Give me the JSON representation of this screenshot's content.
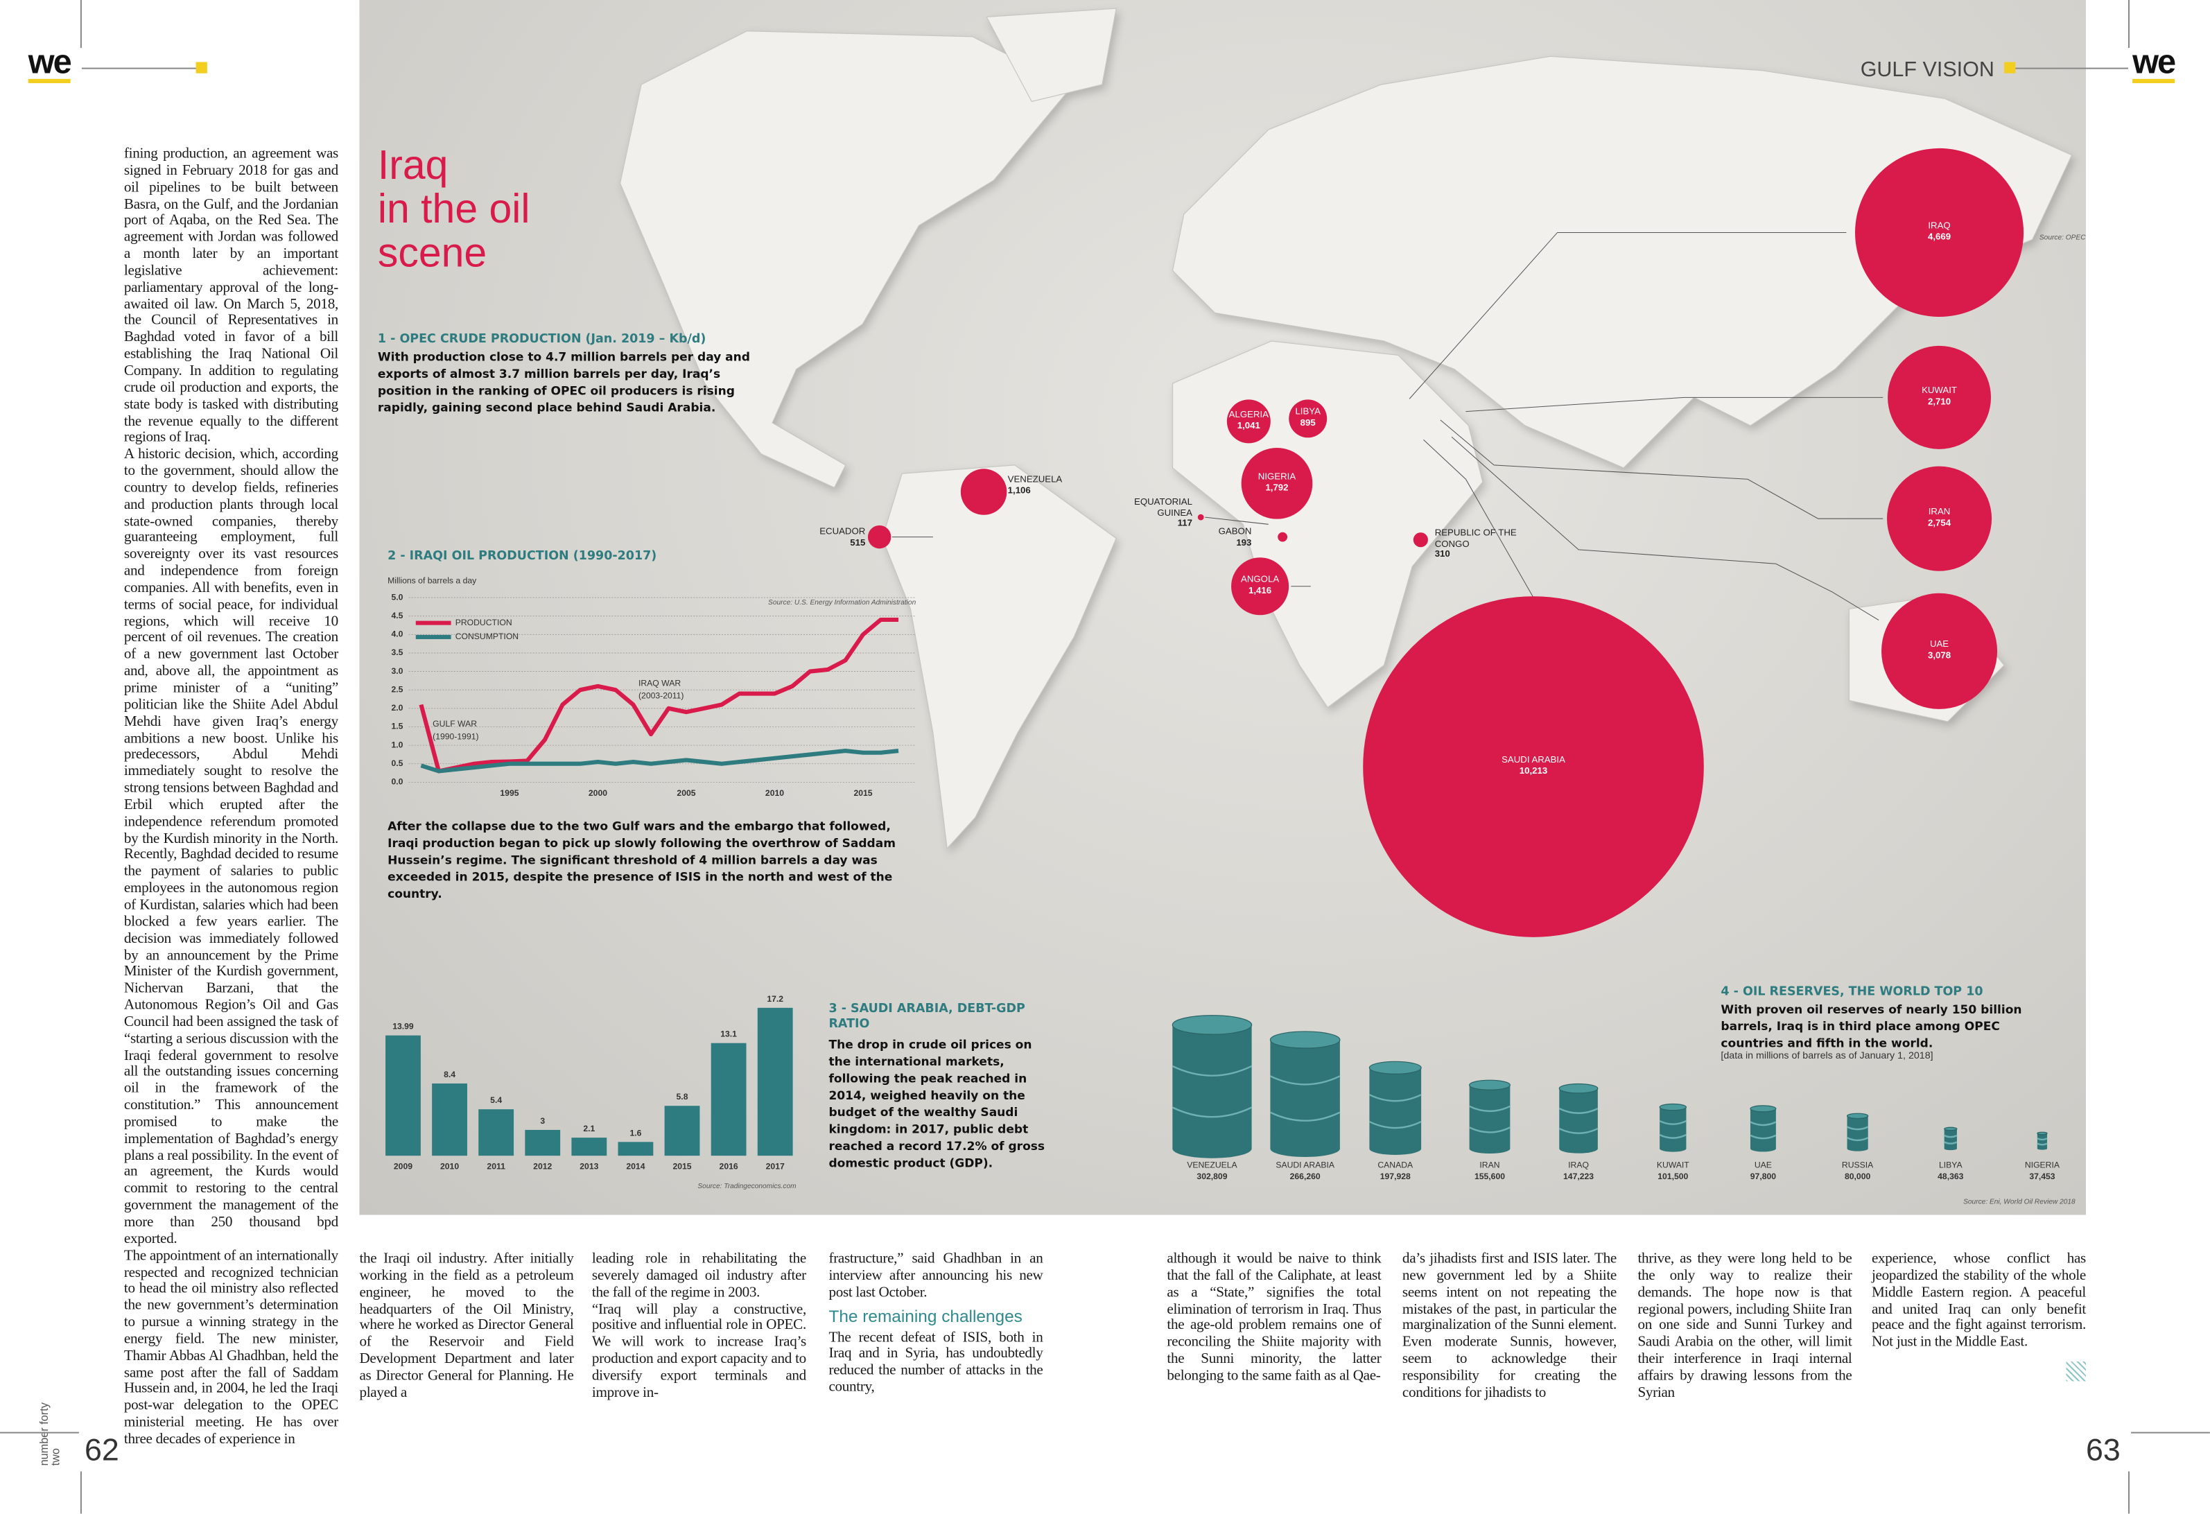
{
  "header": {
    "logo_left": "we",
    "section": "GULF VISION",
    "logo_right": "we"
  },
  "footer": {
    "issue": "number forty two",
    "page_left": "62",
    "page_right": "63"
  },
  "title_lines": [
    "Iraq",
    "in the oil",
    "scene"
  ],
  "article": {
    "columns": [
      {
        "paragraphs": [
          "fining production, an agreement was signed in February 2018 for gas and oil pipelines to be built between Basra, on the Gulf, and the Jordanian port of Aqaba, on the Red Sea. The agreement with Jordan was followed a month later by an important legislative achievement: parliamentary approval of the long-awaited oil law. On March 5, 2018, the Council of Representatives in Baghdad voted in favor of a bill establishing the Iraq National Oil Company. In addition to regulating crude oil production and exports, the state body is tasked with distributing the revenue equally to the different regions of Iraq.",
          "A historic decision, which, according to the government, should allow the country to develop fields, refineries and production plants through local state-owned companies, thereby guaranteeing employment, full sovereignty over its vast resources and independence from foreign companies. All with benefits, even in terms of social peace, for individual regions, which will receive 10 percent of oil revenues. The creation of a new government last October and, above all, the appointment as prime minister of a “uniting” politician like the Shiite Adel Abdul Mehdi have given Iraq’s energy ambitions a new boost. Unlike his predecessors, Abdul Mehdi immediately sought to resolve the strong tensions between Baghdad and Erbil which erupted after the independence referendum promoted by the Kurdish minority in the North. Recently, Baghdad decided to resume the payment of salaries to public employees in the autonomous region of Kurdistan, salaries which had been blocked a few years earlier. The decision was immediately followed by an announcement by the Prime Minister of the Kurdish government, Nichervan Barzani, that the Autonomous Region’s Oil and Gas Council had been assigned the task of “starting a serious discussion with the Iraqi federal government to resolve all the outstanding issues concerning oil in the framework of the constitution.” This announcement promised to make the implementation of Baghdad’s energy plans a real possibility. In the event of an agreement, the Kurds would commit to restoring to the central government the management of the more than 250 thousand bpd exported.",
          "The appointment of an internationally respected and recognized technician to head the oil ministry also reflected the new government’s determination to pursue a winning strategy in the energy field. The new minister, Thamir Abbas Al Ghadhban, held the same post after the fall of Saddam Hussein and, in 2004, he led the Iraqi post-war delegation to the OPEC ministerial meeting. He has over three decades of experience in"
        ]
      },
      {
        "paragraphs": [
          "the Iraqi oil industry. After initially working in the field as a petroleum engineer, he moved to the headquarters of the Oil Ministry, where he worked as Director General of the Reservoir and Field Development Department and later as Director General for Planning. He played a"
        ]
      },
      {
        "paragraphs": [
          "leading role in rehabilitating the severely damaged oil industry after the fall of the regime in 2003.",
          "“Iraq will play a constructive, positive and influential role in OPEC. We will work to increase Iraq’s production and export capacity and to diversify export terminals and improve in-"
        ]
      },
      {
        "paragraphs": [
          "frastructure,” said Ghadhban in an interview after announcing his new post last October."
        ],
        "subheading": "The remaining challenges",
        "paragraphs_after": [
          "The recent defeat of ISIS, both in Iraq and in Syria, has undoubtedly reduced the number of attacks in the country,"
        ]
      },
      {
        "paragraphs": [
          "although it would be naive to think that the fall of the Caliphate, at least as a “State,” signifies the total elimination of terrorism in Iraq. Thus the age-old problem remains one of reconciling the Shiite majority with the Sunni minority, the latter belonging to the same faith as al Qae-"
        ]
      },
      {
        "paragraphs": [
          "da’s jihadists first and ISIS later. The new government led by a Shiite seems intent on not repeating the mistakes of the past, in particular the marginalization of the Sunni element. Even moderate Sunnis, however, seem to acknowledge their responsibility for creating the conditions for jihadists to"
        ]
      },
      {
        "paragraphs": [
          "thrive, as they were long held to be the only way to realize their demands. The hope now is that regional powers, including Shiite Iran on one side and Sunni Turkey and Saudi Arabia on the other, will limit their interference in Iraqi internal affairs by drawing lessons from the Syrian"
        ]
      },
      {
        "paragraphs": [
          "experience, whose conflict has jeopardized the stability of the whole Middle Eastern region. A peaceful and united Iraq can only benefit peace and the fight against terrorism. Not just in the Middle East."
        ]
      }
    ]
  },
  "chart_data": [
    {
      "type": "bubble",
      "heading": "1 - OPEC CRUDE PRODUCTION (Jan. 2019 – Kb/d)",
      "text": "With production close to 4.7 million barrels per day and exports of almost 3.7 million barrels per day, Iraq’s position in the ranking of OPEC oil producers is rising rapidly, gaining second place behind Saudi Arabia.",
      "source": "Source: OPEC",
      "color": "#d81b4a",
      "names": [
        "IRAQ",
        "KUWAIT",
        "IRAN",
        "UAE",
        "SAUDI ARABIA",
        "VENEZUELA",
        "ECUADOR",
        "ALGERIA",
        "LIBYA",
        "NIGERIA",
        "EQUATORIAL GUINEA",
        "GABON",
        "REPUBLIC OF THE CONGO",
        "ANGOLA"
      ],
      "values": [
        4669,
        2710,
        2754,
        3078,
        10213,
        1106,
        515,
        1041,
        895,
        1792,
        117,
        193,
        310,
        1416
      ],
      "value_labels": [
        "4,669",
        "2,710",
        "2,754",
        "3,078",
        "10,213",
        "1,106",
        "515",
        "1,041",
        "895",
        "1,792",
        "117",
        "193",
        "310",
        "1,416"
      ]
    },
    {
      "type": "line",
      "heading": "2 - IRAQI OIL PRODUCTION (1990-2017)",
      "ylabel": "Millions of barrels a day",
      "source": "Source: U.S. Energy Information Administration",
      "caption": "After the collapse due to the two Gulf wars and the embargo that followed, Iraqi production began to pick up slowly following the overthrow of Saddam Hussein’s regime. The significant threshold of 4 million barrels a day was exceeded in 2015, despite the presence of ISIS in the north and west of the country.",
      "annotations": [
        [
          "GULF WAR",
          "(1990-1991)"
        ],
        [
          "IRAQ WAR",
          "(2003-2011)"
        ]
      ],
      "x": [
        1990,
        1991,
        1992,
        1993,
        1994,
        1995,
        1996,
        1997,
        1998,
        1999,
        2000,
        2001,
        2002,
        2003,
        2004,
        2005,
        2006,
        2007,
        2008,
        2009,
        2010,
        2011,
        2012,
        2013,
        2014,
        2015,
        2016,
        2017
      ],
      "series": [
        {
          "name": "PRODUCTION",
          "color": "#d81b4a",
          "values": [
            2.1,
            0.3,
            0.4,
            0.5,
            0.55,
            0.56,
            0.58,
            1.15,
            2.1,
            2.5,
            2.6,
            2.5,
            2.1,
            1.3,
            2.0,
            1.9,
            2.0,
            2.1,
            2.4,
            2.4,
            2.4,
            2.6,
            3.0,
            3.05,
            3.3,
            4.0,
            4.4,
            4.4
          ]
        },
        {
          "name": "CONSUMPTION",
          "color": "#2f7c80",
          "values": [
            0.45,
            0.3,
            0.35,
            0.4,
            0.45,
            0.5,
            0.5,
            0.5,
            0.5,
            0.5,
            0.55,
            0.5,
            0.55,
            0.5,
            0.55,
            0.6,
            0.55,
            0.5,
            0.55,
            0.6,
            0.65,
            0.7,
            0.75,
            0.8,
            0.85,
            0.8,
            0.8,
            0.85
          ]
        }
      ],
      "xlim": [
        1989.3,
        2018
      ],
      "xticks": [
        1995,
        2000,
        2005,
        2010,
        2015
      ],
      "ylim": [
        0,
        5
      ],
      "yticks": [
        {
          "value": 0,
          "label": "0.0"
        },
        0.5,
        {
          "value": 1,
          "label": "1.0"
        },
        1.5,
        {
          "value": 2,
          "label": "2.0"
        },
        2.5,
        {
          "value": 3,
          "label": "3.0"
        },
        3.5,
        {
          "value": 4,
          "label": "4.0"
        },
        4.5,
        {
          "value": 5,
          "label": "5.0"
        }
      ],
      "grid": true
    },
    {
      "type": "bar",
      "heading": "3 - SAUDI ARABIA, DEBT-GDP RATIO",
      "text": "The drop in crude oil prices on the international markets, following the peak reached in 2014, weighed heavily on the budget of the wealthy Saudi kingdom: in 2017, public debt reached a record 17.2% of gross domestic product (GDP).",
      "source": "Source: Tradingeconomics.com",
      "color": "#2f7c80",
      "categories": [
        "2009",
        "2010",
        "2011",
        "2012",
        "2013",
        "2014",
        "2015",
        "2016",
        "2017"
      ],
      "values": [
        13.99,
        8.4,
        5.4,
        3,
        2.1,
        1.6,
        5.8,
        13.1,
        17.2
      ]
    },
    {
      "type": "pictograph",
      "heading": "4 - OIL RESERVES, THE WORLD TOP 10",
      "text": "With proven oil reserves of nearly 150 billion barrels, Iraq is in third place among OPEC countries and fifth in the world.",
      "note": "[data in millions of barrels as of January 1, 2018]",
      "source": "Source: Eni, World Oil Review 2018",
      "color": "#2f7577",
      "categories": [
        "VENEZUELA",
        "SAUDI ARABIA",
        "CANADA",
        "IRAN",
        "IRAQ",
        "KUWAIT",
        "UAE",
        "RUSSIA",
        "LIBYA",
        "NIGERIA"
      ],
      "values": [
        302809,
        266260,
        197928,
        155600,
        147223,
        101500,
        97800,
        80000,
        48363,
        37453
      ],
      "value_labels": [
        "302,809",
        "266,260",
        "197,928",
        "155,600",
        "147,223",
        "101,500",
        "97,800",
        "80,000",
        "48,363",
        "37,453"
      ]
    }
  ]
}
